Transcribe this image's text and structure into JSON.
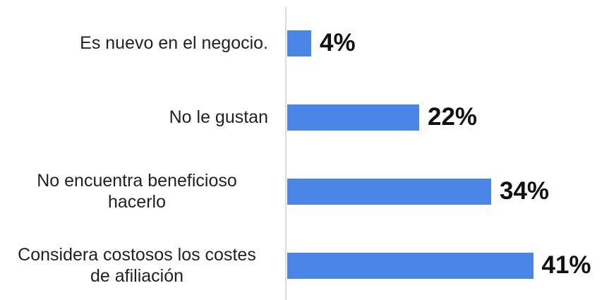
{
  "chart_data": {
    "type": "bar",
    "orientation": "horizontal",
    "categories": [
      "Es nuevo en el negocio.",
      "No le gustan",
      "No encuentra beneficioso hacerlo",
      "Considera costosos los costes de afiliación"
    ],
    "values": [
      4,
      22,
      34,
      41
    ],
    "value_labels": [
      "4%",
      "22%",
      "34%",
      "41%"
    ],
    "color": "#4a86e8"
  }
}
